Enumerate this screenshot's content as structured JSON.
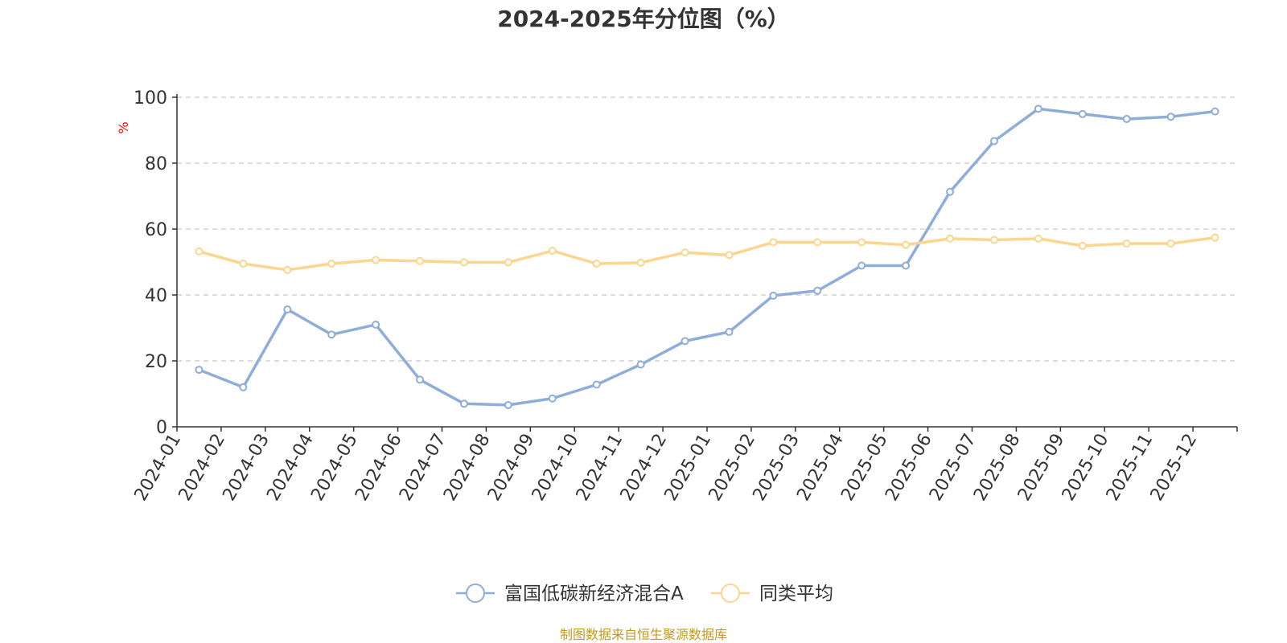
{
  "chart_data": {
    "type": "line",
    "title": "2024-2025年分位图（%）",
    "ylabel": "%",
    "xlabel": "",
    "ylim": [
      0,
      100
    ],
    "yticks": [
      0,
      20,
      40,
      60,
      80,
      100
    ],
    "grid": true,
    "legend_position": "bottom",
    "categories": [
      "2024-01",
      "2024-02",
      "2024-03",
      "2024-04",
      "2024-05",
      "2024-06",
      "2024-07",
      "2024-08",
      "2024-09",
      "2024-10",
      "2024-11",
      "2024-12",
      "2025-01",
      "2025-02",
      "2025-03",
      "2025-04",
      "2025-05",
      "2025-06",
      "2025-07",
      "2025-08",
      "2025-09",
      "2025-10",
      "2025-11",
      "2025-12"
    ],
    "series": [
      {
        "name": "富国低碳新经济混合A",
        "color": "#8eadd9",
        "values": [
          17.3,
          12.0,
          35.6,
          28.0,
          31.0,
          14.3,
          7.0,
          6.6,
          8.6,
          12.8,
          18.9,
          26.0,
          28.8,
          39.8,
          41.3,
          48.9,
          48.9,
          71.3,
          86.7,
          96.5,
          94.9,
          93.4,
          94.1,
          95.7
        ]
      },
      {
        "name": "同类平均",
        "color": "#fcd68f",
        "values": [
          53.2,
          49.5,
          47.6,
          49.5,
          50.6,
          50.3,
          49.9,
          49.9,
          53.4,
          49.5,
          49.8,
          52.9,
          52.1,
          56.0,
          56.0,
          56.0,
          55.2,
          57.1,
          56.7,
          57.1,
          54.9,
          55.6,
          55.6,
          57.4
        ]
      }
    ]
  },
  "footer": {
    "source": "制图数据来自恒生聚源数据库"
  },
  "colors": {
    "title": "#333333",
    "axis": "#333333",
    "grid": "#c8c8c8",
    "unit_label": "#ff0000",
    "source": "#c49a1a"
  }
}
